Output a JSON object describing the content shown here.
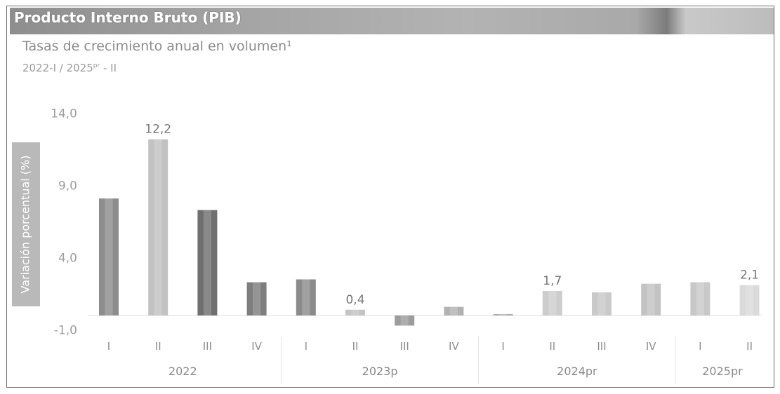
{
  "chart_data": {
    "type": "bar",
    "title": "Producto Interno Bruto (PIB)",
    "subtitle": "Tasas de crecimiento anual en volumen¹",
    "period": {
      "main": "2022-I / 2025",
      "sup": "pr",
      "end": " - II"
    },
    "xlabel": "",
    "ylabel": "Variación porcentual (%)",
    "ylim": [
      -1,
      14
    ],
    "yticks": [
      14,
      9,
      4,
      -1
    ],
    "ytick_labels": [
      "14,0",
      "9,0",
      "4,0",
      "-1,0"
    ],
    "categories": [
      "I",
      "II",
      "III",
      "IV",
      "I",
      "II",
      "III",
      "IV",
      "I",
      "II",
      "III",
      "IV",
      "I",
      "II"
    ],
    "groups": [
      {
        "label": "2022",
        "count": 4
      },
      {
        "label": "2023p",
        "count": 4
      },
      {
        "label": "2024pr",
        "count": 4
      },
      {
        "label": "2025pr",
        "count": 2
      }
    ],
    "values": [
      8.1,
      12.2,
      7.3,
      2.3,
      2.5,
      0.4,
      -0.7,
      0.6,
      0.1,
      1.7,
      1.6,
      2.2,
      2.3,
      2.1
    ],
    "data_labels": [
      null,
      "12,2",
      null,
      null,
      null,
      "0,4",
      null,
      null,
      null,
      "1,7",
      null,
      null,
      null,
      "2,1"
    ],
    "colors": [
      "#8d8d8d",
      "#c2c2c2",
      "#6f6f6f",
      "#7e7e7e",
      "#8b8b8b",
      "#c4c4c4",
      "#9c9c9c",
      "#b2b2b2",
      "#adadad",
      "#cdcdcd",
      "#c9c9c9",
      "#c3c3c3",
      "#c8c8c8",
      "#dadada"
    ],
    "grid": false,
    "legend": "none"
  }
}
